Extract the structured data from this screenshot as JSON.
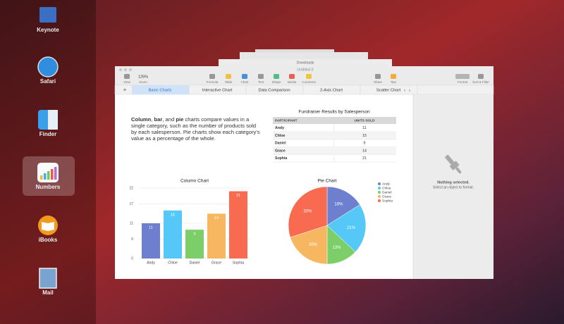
{
  "dock": {
    "apps": [
      "Keynote",
      "Safari",
      "Finder",
      "Numbers",
      "iBooks",
      "Mail"
    ]
  },
  "window": {
    "title": "Untitled 2",
    "background_title": "Downloads",
    "toolbar": [
      "View",
      "Zoom",
      "Formula",
      "Table",
      "Chart",
      "Text",
      "Shape",
      "Media",
      "Comment",
      "Share",
      "Tips",
      "Format",
      "Sort & Filter"
    ],
    "zoom": "125%",
    "tabs": [
      "Basic Charts",
      "Interactive Chart",
      "Data Comparison",
      "2-Axis Chart",
      "Scatter Chart"
    ]
  },
  "body_text": [
    [
      "Column",
      ", ",
      "bar",
      ", and ",
      "pie",
      " charts compare values in a"
    ],
    "single category, such as the number of products sold",
    "by each salesperson. Pie charts show each category’s",
    "value as a percentage of the whole."
  ],
  "table": {
    "title": "Fundraiser Results by Salesperson",
    "columns": [
      "PARTICIPANT",
      "UNITS SOLD"
    ],
    "rows": [
      [
        "Andy",
        11
      ],
      [
        "Chloe",
        15
      ],
      [
        "Daniel",
        9
      ],
      [
        "Grace",
        14
      ],
      [
        "Sophia",
        21
      ]
    ]
  },
  "column_chart": {
    "type": "bar",
    "title": "Column Chart",
    "categories": [
      "Andy",
      "Chloe",
      "Daniel",
      "Grace",
      "Sophia"
    ],
    "values": [
      11,
      15,
      9,
      14,
      21
    ],
    "colors": [
      "#6f7fd0",
      "#55c8f7",
      "#7ccf68",
      "#f7b760",
      "#f86b50"
    ],
    "ylim": [
      0,
      22
    ],
    "yticks": [
      0,
      6,
      11,
      17,
      22
    ],
    "grid": true
  },
  "pie_chart": {
    "type": "pie",
    "title": "Pie Chart",
    "categories": [
      "Andy",
      "Chloe",
      "Daniel",
      "Grace",
      "Sophia"
    ],
    "values": [
      16,
      21,
      13,
      20,
      30
    ],
    "value_labels": [
      "16%",
      "21%",
      "13%",
      "20%",
      "30%"
    ],
    "colors": [
      "#6f7fd0",
      "#55c8f7",
      "#7ccf68",
      "#f7b760",
      "#f86b50"
    ]
  },
  "inspector": {
    "title": "Nothing selected.",
    "subtitle": "Select an object to format."
  }
}
